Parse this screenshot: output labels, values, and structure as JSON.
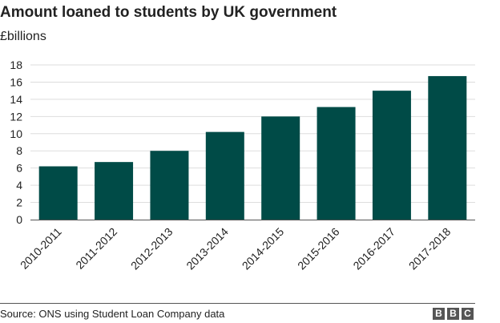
{
  "header": {
    "title": "Amount loaned to students by UK government",
    "subtitle": "£billions"
  },
  "footer": {
    "source": "Source: ONS using Student Loan Company data",
    "logo_letters": [
      "B",
      "B",
      "C"
    ]
  },
  "colors": {
    "bar": "#004b47",
    "grid": "#dddddd",
    "axis": "#555555"
  },
  "chart_data": {
    "type": "bar",
    "title": "Amount loaned to students by UK government",
    "subtitle": "£billions",
    "xlabel": "",
    "ylabel": "",
    "categories": [
      "2010-2011",
      "2011-2012",
      "2012-2013",
      "2013-2014",
      "2014-2015",
      "2015-2016",
      "2016-2017",
      "2017-2018"
    ],
    "values": [
      6.2,
      6.7,
      8.0,
      10.2,
      12.0,
      13.1,
      15.0,
      16.7
    ],
    "ylim": [
      0,
      18
    ],
    "yticks": [
      0,
      2,
      4,
      6,
      8,
      10,
      12,
      14,
      16,
      18
    ],
    "grid": true,
    "legend": "none"
  }
}
